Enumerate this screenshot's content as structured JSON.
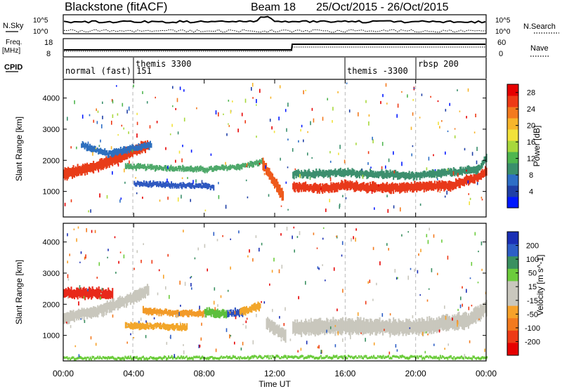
{
  "header": {
    "station": "Blackstone (fitACF)",
    "beam": "Beam 18",
    "date_range": "25/Oct/2015 - 26/Oct/2015"
  },
  "noise_panel": {
    "left_label": "N.Sky",
    "right_label": "N.Search",
    "left_ticks": [
      "10^5",
      "10^0"
    ],
    "right_ticks": [
      "10^5",
      "10^0"
    ]
  },
  "freq_panel": {
    "left_label": "Freq.",
    "left_unit": "[MHz]",
    "right_label": "Nave",
    "left_ticks": [
      "18",
      "8"
    ],
    "right_ticks": [
      "60",
      "0"
    ]
  },
  "cpid_panel": {
    "label": "CPID",
    "segments": [
      {
        "label": "normal (fast) 151",
        "start_hour": 0.0
      },
      {
        "label": "themis 3300",
        "start_hour": 3.95
      },
      {
        "label": "themis -3300",
        "start_hour": 16.0
      },
      {
        "label": "rbsp 200",
        "start_hour": 20.0
      }
    ]
  },
  "chart_data": [
    {
      "type": "heatmap",
      "name": "power",
      "ylabel": "Slant Range [km]",
      "xlabel": "Time UT",
      "xlim_hours": [
        0,
        24
      ],
      "ylim": [
        180,
        4600
      ],
      "x_ticks": [
        "00:00",
        "04:00",
        "08:00",
        "12:00",
        "16:00",
        "20:00",
        "00:00"
      ],
      "y_ticks": [
        1000,
        2000,
        3000,
        4000
      ],
      "colorbar": {
        "label": "Power [dB]",
        "ticks": [
          4,
          8,
          12,
          16,
          20,
          24,
          28
        ],
        "range": [
          0,
          30
        ],
        "colors": [
          "#0018ff",
          "#1f3fa6",
          "#2d6ec6",
          "#3a8f6c",
          "#4fb64f",
          "#a8d83c",
          "#f2e23a",
          "#f7b52a",
          "#f37a1e",
          "#ee3a16",
          "#e60000"
        ]
      },
      "bands": [
        {
          "t": [
            0.0,
            1.5,
            2.5,
            3.5,
            4.8
          ],
          "r": [
            1550,
            1750,
            1950,
            2200,
            2500
          ],
          "width": 380,
          "color": "#e83c18"
        },
        {
          "t": [
            1.0,
            2.5,
            4.0,
            5.0
          ],
          "r": [
            2500,
            2200,
            2400,
            2500
          ],
          "width": 220,
          "color": "#2e6fbe"
        },
        {
          "t": [
            3.5,
            6.0,
            8.0,
            10.0,
            11.3
          ],
          "r": [
            1800,
            1750,
            1700,
            1800,
            1950
          ],
          "width": 180,
          "color": "#4fa96b"
        },
        {
          "t": [
            4.0,
            6.0,
            8.5
          ],
          "r": [
            1250,
            1200,
            1150
          ],
          "width": 180,
          "color": "#2e58c0"
        },
        {
          "t": [
            11.3,
            12.0,
            12.5
          ],
          "r": [
            1900,
            1250,
            850
          ],
          "width": 400,
          "color": "#ee5a1c"
        },
        {
          "t": [
            13.0,
            15.0,
            16.0,
            18.0,
            20.0,
            22.0,
            23.5,
            24.0
          ],
          "r": [
            1150,
            1100,
            1200,
            1100,
            1150,
            1200,
            1450,
            1650
          ],
          "width": 320,
          "color": "#e8391a"
        },
        {
          "t": [
            13.0,
            16.0,
            20.0,
            23.5,
            24.0
          ],
          "r": [
            1550,
            1600,
            1500,
            1700,
            2100
          ],
          "width": 260,
          "color": "#3c8f6e"
        }
      ]
    },
    {
      "type": "heatmap",
      "name": "velocity",
      "ylabel": "Slant Range [km]",
      "xlabel": "Time UT",
      "xlim_hours": [
        0,
        24
      ],
      "ylim": [
        180,
        4600
      ],
      "x_ticks": [
        "00:00",
        "04:00",
        "08:00",
        "12:00",
        "16:00",
        "20:00",
        "00:00"
      ],
      "y_ticks": [
        1000,
        2000,
        3000,
        4000
      ],
      "colorbar": {
        "label": "Velocity [m s^-1]",
        "ticks": [
          200,
          100,
          50,
          15,
          -15,
          -50,
          -100,
          -200
        ],
        "colors": [
          "#1a2fb5",
          "#2d5ec6",
          "#3a9060",
          "#6ccc3c",
          "#c9c7bd",
          "#c9c7bd",
          "#f7a22a",
          "#f37a1e",
          "#ee3a16",
          "#e60000"
        ]
      },
      "bands": [
        {
          "t": [
            0.0,
            1.0,
            2.0,
            2.8
          ],
          "r": [
            2350,
            2350,
            2350,
            2300
          ],
          "width": 350,
          "color": "#e8281a"
        },
        {
          "t": [
            0.0,
            2.0,
            3.5,
            4.8
          ],
          "r": [
            1550,
            1800,
            2100,
            2450
          ],
          "width": 380,
          "color": "#c9c7bd"
        },
        {
          "t": [
            3.5,
            5.5,
            7.0
          ],
          "r": [
            1300,
            1300,
            1250
          ],
          "width": 220,
          "color": "#f2a62a"
        },
        {
          "t": [
            4.5,
            6.5,
            8.0
          ],
          "r": [
            1800,
            1700,
            1700
          ],
          "width": 220,
          "color": "#f29a28"
        },
        {
          "t": [
            8.0,
            9.3
          ],
          "r": [
            1750,
            1700
          ],
          "width": 260,
          "color": "#5cbf3c"
        },
        {
          "t": [
            9.3,
            10.2
          ],
          "r": [
            1700,
            1750
          ],
          "width": 260,
          "color": "#2b4fbf"
        },
        {
          "t": [
            10.0,
            11.2
          ],
          "r": [
            1750,
            1950
          ],
          "width": 260,
          "color": "#f2a62a"
        },
        {
          "t": [
            11.5,
            12.6
          ],
          "r": [
            1400,
            1000
          ],
          "width": 400,
          "color": "#c9c7bd"
        },
        {
          "t": [
            13.0,
            16.0,
            20.0,
            23.0,
            24.0
          ],
          "r": [
            1250,
            1300,
            1250,
            1500,
            1900
          ],
          "width": 520,
          "color": "#c9c7bd"
        },
        {
          "t": [
            0.0,
            6.0,
            12.0,
            18.0,
            24.0
          ],
          "r": [
            260,
            280,
            300,
            300,
            280
          ],
          "width": 90,
          "color": "#6ccc3c"
        }
      ]
    }
  ]
}
